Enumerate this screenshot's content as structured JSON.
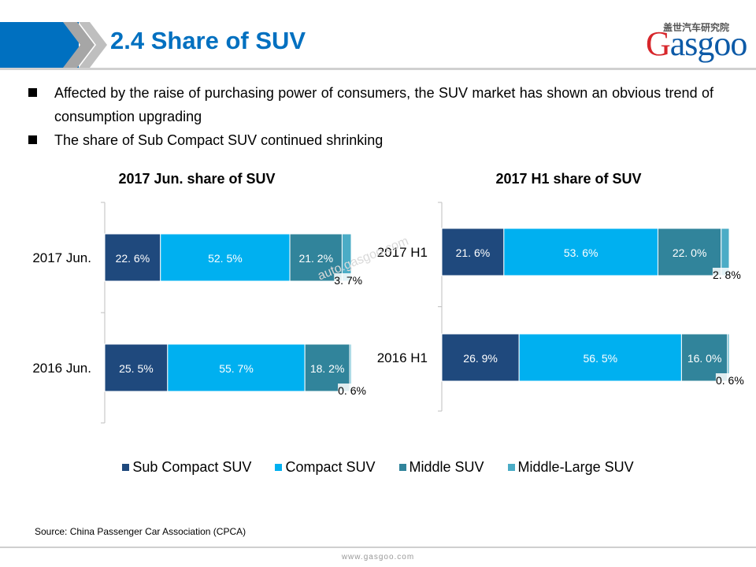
{
  "header": {
    "title": "2.4 Share of SUV",
    "logo_text": "Gasgoo",
    "logo_cn": "盖世汽车研究院"
  },
  "bullets": [
    "Affected by the raise of purchasing power of consumers, the SUV market has shown an obvious trend of consumption upgrading",
    "The share of Sub Compact SUV continued shrinking"
  ],
  "colors": {
    "accent": "#0070c0",
    "sub_compact": "#1f497d",
    "compact": "#00b0f0",
    "middle": "#31849b",
    "middle_large": "#4bacc6"
  },
  "chart_data": [
    {
      "type": "bar",
      "orientation": "horizontal",
      "stacked": true,
      "title": "2017 Jun. share of SUV",
      "categories": [
        "2017 Jun.",
        "2016 Jun."
      ],
      "series": [
        {
          "name": "Sub Compact SUV",
          "values": [
            22.6,
            25.5
          ],
          "labels": [
            "22. 6%",
            "25. 5%"
          ]
        },
        {
          "name": "Compact SUV",
          "values": [
            52.5,
            55.7
          ],
          "labels": [
            "52. 5%",
            "55. 7%"
          ]
        },
        {
          "name": "Middle SUV",
          "values": [
            21.2,
            18.2
          ],
          "labels": [
            "21. 2%",
            "18. 2%"
          ]
        },
        {
          "name": "Middle-Large SUV",
          "values": [
            3.7,
            0.6
          ],
          "labels": [
            "3. 7%",
            "0. 6%"
          ]
        }
      ],
      "xlim": [
        0,
        100
      ],
      "legend": "bottom"
    },
    {
      "type": "bar",
      "orientation": "horizontal",
      "stacked": true,
      "title": "2017 H1 share of SUV",
      "categories": [
        "2017 H1",
        "2016 H1"
      ],
      "series": [
        {
          "name": "Sub Compact SUV",
          "values": [
            21.6,
            26.9
          ],
          "labels": [
            "21. 6%",
            "26. 9%"
          ]
        },
        {
          "name": "Compact SUV",
          "values": [
            53.6,
            56.5
          ],
          "labels": [
            "53. 6%",
            "56. 5%"
          ]
        },
        {
          "name": "Middle SUV",
          "values": [
            22.0,
            16.0
          ],
          "labels": [
            "22. 0%",
            "16. 0%"
          ]
        },
        {
          "name": "Middle-Large SUV",
          "values": [
            2.8,
            0.6
          ],
          "labels": [
            "2. 8%",
            "0. 6%"
          ]
        }
      ],
      "xlim": [
        0,
        100
      ],
      "legend": "bottom"
    }
  ],
  "legend": [
    "Sub Compact SUV",
    "Compact SUV",
    "Middle SUV",
    "Middle-Large SUV"
  ],
  "source": "Source: China Passenger Car Association (CPCA)",
  "footer_url": "www.gasgoo.com",
  "watermark": "auto.gasgoo.com"
}
